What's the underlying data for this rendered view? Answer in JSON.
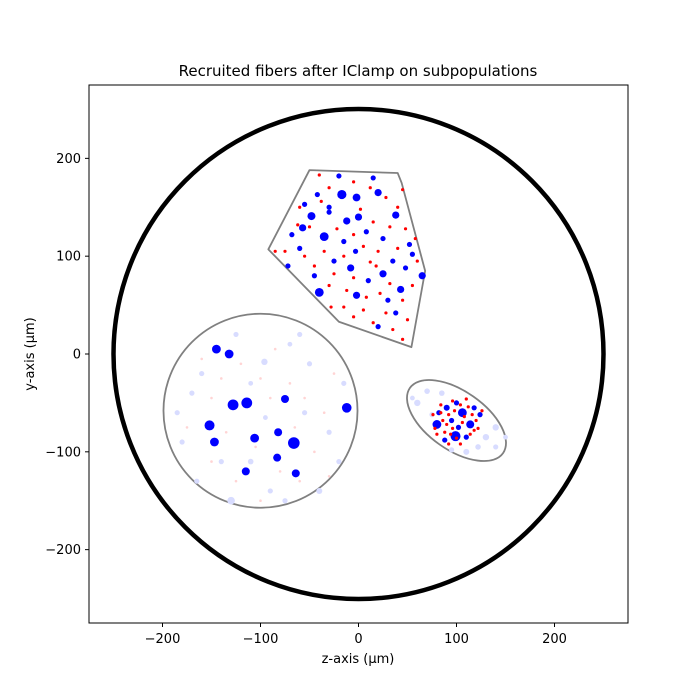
{
  "chart_data": {
    "type": "scatter",
    "title": "Recruited fibers after IClamp on subpopulations",
    "xlabel": "z-axis (µm)",
    "ylabel": "y-axis (µm)",
    "xlim": [
      -275,
      275
    ],
    "ylim": [
      -275,
      275
    ],
    "xticks": [
      -200,
      -100,
      0,
      100,
      200
    ],
    "yticks": [
      -200,
      -100,
      0,
      100,
      200
    ],
    "tick_labels_x": [
      "−200",
      "−100",
      "0",
      "100",
      "200"
    ],
    "tick_labels_y": [
      "−200",
      "−100",
      "0",
      "100",
      "200"
    ],
    "grid": false,
    "legend": "none",
    "colors": {
      "recruited_large": "#0000ff",
      "recruited_small": "#ff0000",
      "not_recruited_large": "#d8dcff",
      "not_recruited_small": "#ffd4d4",
      "fascicle_outline": "#808080",
      "nerve_outline": "#000000"
    },
    "nerve": {
      "center": [
        0,
        0
      ],
      "radius": 250
    },
    "fascicles": [
      {
        "name": "polygon",
        "vertices": [
          [
            -50,
            188
          ],
          [
            40,
            185
          ],
          [
            44,
            175
          ],
          [
            68,
            85
          ],
          [
            54,
            7
          ],
          [
            -20,
            33
          ],
          [
            -92,
            107
          ]
        ]
      },
      {
        "name": "circle",
        "center": [
          -100,
          -58
        ],
        "radius": 99
      },
      {
        "name": "ellipse",
        "center": [
          100,
          -68
        ],
        "rx": 58,
        "ry": 30,
        "angle_deg": -35
      }
    ],
    "series": [
      {
        "group": "polygon",
        "color": "#0000ff",
        "points": [
          [
            -17,
            163,
            4.6
          ],
          [
            -2,
            160,
            3.9
          ],
          [
            0,
            140,
            3.6
          ],
          [
            -12,
            136,
            3.6
          ],
          [
            -35,
            120,
            4.4
          ],
          [
            -48,
            141,
            4.0
          ],
          [
            -57,
            129,
            3.6
          ],
          [
            -40,
            63,
            4.4
          ],
          [
            -8,
            88,
            3.6
          ],
          [
            65,
            80,
            3.6
          ],
          [
            43,
            66,
            3.6
          ],
          [
            25,
            82,
            3.6
          ],
          [
            -2,
            60,
            3.6
          ],
          [
            38,
            142,
            3.6
          ],
          [
            20,
            165,
            3.6
          ],
          [
            -20,
            182,
            2.6
          ],
          [
            -42,
            163,
            2.6
          ],
          [
            -55,
            153,
            2.6
          ],
          [
            -30,
            145,
            2.6
          ],
          [
            8,
            125,
            2.6
          ],
          [
            -15,
            115,
            2.6
          ],
          [
            -3,
            105,
            2.6
          ],
          [
            25,
            118,
            2.6
          ],
          [
            52,
            112,
            2.6
          ],
          [
            55,
            102,
            2.6
          ],
          [
            -60,
            108,
            2.6
          ],
          [
            -25,
            95,
            2.6
          ],
          [
            -45,
            80,
            2.6
          ],
          [
            10,
            75,
            2.6
          ],
          [
            48,
            88,
            2.6
          ],
          [
            30,
            55,
            2.6
          ],
          [
            38,
            42,
            2.6
          ],
          [
            20,
            28,
            2.6
          ],
          [
            -30,
            150,
            2.6
          ],
          [
            35,
            95,
            2.6
          ],
          [
            -72,
            90,
            2.6
          ],
          [
            15,
            180,
            2.6
          ],
          [
            -68,
            122,
            2.6
          ]
        ]
      },
      {
        "group": "polygon",
        "color": "#ff0000",
        "points": [
          [
            -40,
            183,
            1.6
          ],
          [
            -30,
            170,
            1.6
          ],
          [
            -5,
            176,
            1.6
          ],
          [
            12,
            170,
            1.6
          ],
          [
            28,
            160,
            1.6
          ],
          [
            45,
            168,
            1.6
          ],
          [
            -60,
            150,
            1.6
          ],
          [
            -50,
            130,
            1.6
          ],
          [
            -22,
            128,
            1.6
          ],
          [
            -5,
            122,
            1.6
          ],
          [
            15,
            135,
            1.6
          ],
          [
            32,
            130,
            1.6
          ],
          [
            48,
            128,
            1.6
          ],
          [
            -75,
            105,
            1.6
          ],
          [
            -55,
            100,
            1.6
          ],
          [
            -35,
            105,
            1.6
          ],
          [
            -15,
            100,
            1.6
          ],
          [
            5,
            110,
            1.6
          ],
          [
            20,
            105,
            1.6
          ],
          [
            40,
            108,
            1.6
          ],
          [
            60,
            95,
            1.6
          ],
          [
            -45,
            90,
            1.6
          ],
          [
            -25,
            82,
            1.6
          ],
          [
            -5,
            78,
            1.6
          ],
          [
            18,
            90,
            1.6
          ],
          [
            32,
            72,
            1.6
          ],
          [
            55,
            70,
            1.6
          ],
          [
            -30,
            70,
            1.6
          ],
          [
            -12,
            65,
            1.6
          ],
          [
            8,
            58,
            1.6
          ],
          [
            22,
            62,
            1.6
          ],
          [
            45,
            55,
            1.6
          ],
          [
            -15,
            48,
            1.6
          ],
          [
            5,
            45,
            1.6
          ],
          [
            28,
            42,
            1.6
          ],
          [
            50,
            35,
            1.6
          ],
          [
            -5,
            38,
            1.6
          ],
          [
            15,
            32,
            1.6
          ],
          [
            35,
            25,
            1.6
          ],
          [
            45,
            15,
            1.6
          ],
          [
            -85,
            105,
            1.6
          ],
          [
            -62,
            132,
            1.6
          ],
          [
            2,
            148,
            1.6
          ],
          [
            -38,
            156,
            1.6
          ],
          [
            58,
            118,
            1.6
          ],
          [
            -28,
            48,
            1.6
          ],
          [
            12,
            94,
            1.6
          ],
          [
            40,
            150,
            1.6
          ]
        ]
      },
      {
        "group": "circle",
        "color": "#0000ff",
        "points": [
          [
            -145,
            5,
            4.4
          ],
          [
            -132,
            0,
            4.4
          ],
          [
            -128,
            -52,
            5.4
          ],
          [
            -114,
            -50,
            5.4
          ],
          [
            -152,
            -73,
            5.0
          ],
          [
            -147,
            -90,
            4.4
          ],
          [
            -106,
            -86,
            4.4
          ],
          [
            -75,
            -46,
            4.0
          ],
          [
            -66,
            -91,
            5.8
          ],
          [
            -12,
            -55,
            4.8
          ],
          [
            -82,
            -80,
            4.0
          ],
          [
            -83,
            -106,
            4.0
          ],
          [
            -115,
            -120,
            4.0
          ],
          [
            -64,
            -122,
            4.0
          ]
        ]
      },
      {
        "group": "circle",
        "color": "#d8dcff",
        "points": [
          [
            -96,
            -8,
            3.2
          ],
          [
            -110,
            -110,
            2.8
          ],
          [
            -130,
            -150,
            3.8
          ],
          [
            -170,
            -40,
            2.6
          ],
          [
            -180,
            -90,
            2.6
          ],
          [
            -50,
            -10,
            2.6
          ],
          [
            -40,
            -140,
            3.0
          ],
          [
            -30,
            -80,
            2.6
          ],
          [
            -160,
            -20,
            2.6
          ],
          [
            -75,
            -150,
            2.6
          ],
          [
            -185,
            -60,
            2.6
          ],
          [
            -110,
            -30,
            2.4
          ],
          [
            -140,
            -110,
            2.6
          ],
          [
            -60,
            20,
            2.6
          ],
          [
            -20,
            -110,
            2.6
          ],
          [
            -90,
            -140,
            2.6
          ],
          [
            -125,
            20,
            2.6
          ],
          [
            -165,
            -130,
            2.6
          ],
          [
            -15,
            -30,
            2.6
          ],
          [
            -55,
            -60,
            2.6
          ],
          [
            -70,
            10,
            2.4
          ],
          [
            -95,
            -65,
            2.4
          ]
        ]
      },
      {
        "group": "circle",
        "color": "#ffd4d4",
        "points": [
          [
            -160,
            -5,
            1.3
          ],
          [
            -150,
            -45,
            1.3
          ],
          [
            -135,
            -80,
            1.3
          ],
          [
            -120,
            -10,
            1.3
          ],
          [
            -100,
            -25,
            1.3
          ],
          [
            -90,
            -45,
            1.3
          ],
          [
            -85,
            5,
            1.3
          ],
          [
            -70,
            -30,
            1.3
          ],
          [
            -55,
            -45,
            1.3
          ],
          [
            -45,
            -100,
            1.3
          ],
          [
            -35,
            -60,
            1.3
          ],
          [
            -25,
            -20,
            1.3
          ],
          [
            -105,
            -95,
            1.3
          ],
          [
            -125,
            -130,
            1.3
          ],
          [
            -140,
            -25,
            1.3
          ],
          [
            -175,
            -75,
            1.3
          ],
          [
            -60,
            -130,
            1.3
          ],
          [
            -80,
            -120,
            1.3
          ],
          [
            -150,
            -110,
            1.3
          ],
          [
            -100,
            -150,
            1.3
          ],
          [
            -30,
            -125,
            1.3
          ],
          [
            -65,
            -75,
            1.3
          ]
        ]
      },
      {
        "group": "ellipse",
        "color": "#d8dcff",
        "points": [
          [
            60,
            -50,
            3.2
          ],
          [
            70,
            -38,
            2.8
          ],
          [
            85,
            -40,
            2.8
          ],
          [
            130,
            -85,
            3.2
          ],
          [
            122,
            -95,
            2.8
          ],
          [
            140,
            -75,
            3.2
          ],
          [
            110,
            -100,
            3.0
          ],
          [
            140,
            -95,
            2.6
          ],
          [
            75,
            -62,
            2.6
          ],
          [
            150,
            -85,
            2.4
          ],
          [
            55,
            -45,
            2.4
          ],
          [
            95,
            -98,
            2.6
          ]
        ]
      },
      {
        "group": "ellipse",
        "color": "#0000ff",
        "points": [
          [
            80,
            -72,
            4.4
          ],
          [
            99,
            -84,
            5.0
          ],
          [
            106,
            -60,
            4.4
          ],
          [
            114,
            -72,
            4.0
          ],
          [
            90,
            -55,
            3.0
          ],
          [
            118,
            -55,
            2.6
          ],
          [
            88,
            -88,
            2.6
          ],
          [
            100,
            -50,
            2.6
          ],
          [
            124,
            -62,
            2.6
          ],
          [
            82,
            -60,
            2.6
          ],
          [
            110,
            -85,
            2.6
          ],
          [
            95,
            -68,
            2.6
          ],
          [
            102,
            -75,
            2.6
          ]
        ]
      },
      {
        "group": "ellipse",
        "color": "#ff0000",
        "points": [
          [
            76,
            -62,
            1.6
          ],
          [
            84,
            -52,
            1.6
          ],
          [
            92,
            -62,
            1.6
          ],
          [
            96,
            -48,
            1.6
          ],
          [
            104,
            -52,
            1.6
          ],
          [
            110,
            -46,
            1.6
          ],
          [
            116,
            -62,
            1.6
          ],
          [
            120,
            -68,
            1.6
          ],
          [
            106,
            -70,
            1.6
          ],
          [
            96,
            -76,
            1.6
          ],
          [
            88,
            -80,
            1.6
          ],
          [
            80,
            -82,
            1.6
          ],
          [
            92,
            -92,
            1.6
          ],
          [
            104,
            -92,
            1.6
          ],
          [
            114,
            -82,
            1.6
          ],
          [
            122,
            -76,
            1.6
          ],
          [
            86,
            -68,
            1.6
          ],
          [
            98,
            -58,
            1.6
          ],
          [
            112,
            -54,
            1.6
          ],
          [
            90,
            -72,
            1.6
          ],
          [
            108,
            -64,
            1.6
          ],
          [
            118,
            -78,
            1.6
          ],
          [
            100,
            -86,
            1.6
          ],
          [
            84,
            -60,
            1.6
          ],
          [
            94,
            -82,
            1.6
          ],
          [
            126,
            -58,
            1.6
          ],
          [
            78,
            -76,
            1.6
          ]
        ]
      }
    ]
  }
}
